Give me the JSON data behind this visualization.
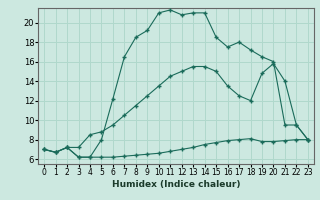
{
  "xlabel": "Humidex (Indice chaleur)",
  "background_color": "#cce8e0",
  "grid_color": "#b0d8cc",
  "line_color": "#1a6b5a",
  "xlim": [
    -0.5,
    23.5
  ],
  "ylim": [
    5.5,
    21.5
  ],
  "xticks": [
    0,
    1,
    2,
    3,
    4,
    5,
    6,
    7,
    8,
    9,
    10,
    11,
    12,
    13,
    14,
    15,
    16,
    17,
    18,
    19,
    20,
    21,
    22,
    23
  ],
  "yticks": [
    6,
    8,
    10,
    12,
    14,
    16,
    18,
    20
  ],
  "line1_x": [
    0,
    1,
    2,
    3,
    4,
    5,
    6,
    7,
    8,
    9,
    10,
    11,
    12,
    13,
    14,
    15,
    16,
    17,
    18,
    19,
    20,
    21,
    22,
    23
  ],
  "line1_y": [
    7.0,
    6.7,
    7.2,
    6.2,
    6.2,
    6.2,
    6.2,
    6.3,
    6.4,
    6.5,
    6.6,
    6.8,
    7.0,
    7.2,
    7.5,
    7.7,
    7.9,
    8.0,
    8.1,
    7.8,
    7.8,
    7.9,
    8.0,
    8.0
  ],
  "line2_x": [
    0,
    1,
    2,
    3,
    4,
    5,
    6,
    7,
    8,
    9,
    10,
    11,
    12,
    13,
    14,
    15,
    16,
    17,
    18,
    19,
    20,
    21,
    22,
    23
  ],
  "line2_y": [
    7.0,
    6.7,
    7.2,
    7.2,
    8.5,
    8.8,
    9.5,
    10.5,
    11.5,
    12.5,
    13.5,
    14.5,
    15.0,
    15.5,
    15.5,
    15.0,
    13.5,
    12.5,
    12.0,
    14.8,
    15.8,
    14.0,
    9.5,
    8.0
  ],
  "line3_x": [
    0,
    1,
    2,
    3,
    4,
    5,
    6,
    7,
    8,
    9,
    10,
    11,
    12,
    13,
    14,
    15,
    16,
    17,
    18,
    19,
    20,
    21,
    22,
    23
  ],
  "line3_y": [
    7.0,
    6.7,
    7.2,
    6.2,
    6.2,
    8.0,
    12.2,
    16.5,
    18.5,
    19.2,
    21.0,
    21.3,
    20.8,
    21.0,
    21.0,
    18.5,
    17.5,
    18.0,
    17.2,
    16.5,
    16.0,
    9.5,
    9.5,
    8.0
  ]
}
